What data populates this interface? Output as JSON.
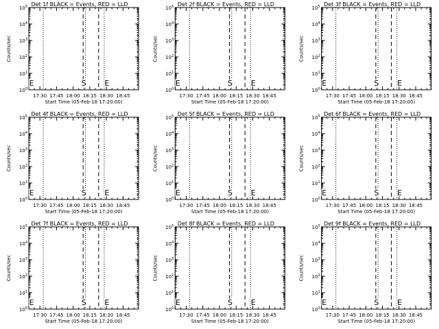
{
  "chart_data": [
    {
      "type": "line",
      "title": "Det 1f BLACK = Events, RED = LLD",
      "xlabel": "Start Time (05-Feb-18 17:20:00)",
      "ylabel": "Counts/sec",
      "xticks": [
        "17:30",
        "17:45",
        "18:00",
        "18:15",
        "18:30",
        "18:45"
      ],
      "yticks": [
        {
          "base": "10",
          "exp": "0"
        },
        {
          "base": "10",
          "exp": "1"
        },
        {
          "base": "10",
          "exp": "2"
        },
        {
          "base": "10",
          "exp": "3"
        },
        {
          "base": "10",
          "exp": "4"
        },
        {
          "base": "10",
          "exp": "5"
        }
      ],
      "ylim": [
        1,
        100000
      ],
      "yscale": "log",
      "xlim": [
        "17:20",
        "18:59"
      ],
      "dotted_lines": [
        "17:20",
        "17:33",
        "18:11",
        "18:28",
        "18:58"
      ],
      "dashed_lines": [
        {
          "time": "18:09",
          "label": "S"
        },
        {
          "time": "18:23",
          "label": ""
        }
      ],
      "markers": [
        {
          "time": "17:20",
          "label": "E"
        },
        {
          "time": "18:28",
          "label": "E"
        }
      ],
      "series": []
    },
    {
      "type": "line",
      "title": "Det 2f BLACK = Events, RED = LLD",
      "xlabel": "Start Time (05-Feb-18 17:20:00)",
      "ylabel": "Counts/sec",
      "xticks": [
        "17:30",
        "17:45",
        "18:00",
        "18:15",
        "18:30",
        "18:45"
      ],
      "yticks": [
        {
          "base": "10",
          "exp": "0"
        },
        {
          "base": "10",
          "exp": "1"
        },
        {
          "base": "10",
          "exp": "2"
        },
        {
          "base": "10",
          "exp": "3"
        },
        {
          "base": "10",
          "exp": "4"
        },
        {
          "base": "10",
          "exp": "5"
        }
      ],
      "ylim": [
        1,
        100000
      ],
      "yscale": "log",
      "xlim": [
        "17:20",
        "18:59"
      ],
      "dotted_lines": [
        "17:20",
        "17:33",
        "18:11",
        "18:28",
        "18:58"
      ],
      "dashed_lines": [
        {
          "time": "18:09",
          "label": "S"
        },
        {
          "time": "18:23",
          "label": ""
        }
      ],
      "markers": [
        {
          "time": "17:20",
          "label": "E"
        },
        {
          "time": "18:28",
          "label": "E"
        }
      ],
      "series": []
    },
    {
      "type": "line",
      "title": "Det 3f BLACK = Events, RED = LLD",
      "xlabel": "Start Time (05-Feb-18 17:20:00)",
      "ylabel": "Counts/sec",
      "xticks": [
        "17:30",
        "17:45",
        "18:00",
        "18:15",
        "18:30",
        "18:45"
      ],
      "yticks": [
        {
          "base": "10",
          "exp": "0"
        },
        {
          "base": "10",
          "exp": "1"
        },
        {
          "base": "10",
          "exp": "2"
        },
        {
          "base": "10",
          "exp": "3"
        },
        {
          "base": "10",
          "exp": "4"
        },
        {
          "base": "10",
          "exp": "5"
        }
      ],
      "ylim": [
        1,
        100000
      ],
      "yscale": "log",
      "xlim": [
        "17:20",
        "18:59"
      ],
      "dotted_lines": [
        "17:20",
        "17:33",
        "18:11",
        "18:28",
        "18:58"
      ],
      "dashed_lines": [
        {
          "time": "18:09",
          "label": "S"
        },
        {
          "time": "18:23",
          "label": ""
        }
      ],
      "markers": [
        {
          "time": "17:20",
          "label": "E"
        },
        {
          "time": "18:28",
          "label": "E"
        }
      ],
      "series": []
    },
    {
      "type": "line",
      "title": "Det 4f BLACK = Events, RED = LLD",
      "xlabel": "Start Time (05-Feb-18 17:20:00)",
      "ylabel": "Counts/sec",
      "xticks": [
        "17:30",
        "17:45",
        "18:00",
        "18:15",
        "18:30",
        "18:45"
      ],
      "yticks": [
        {
          "base": "10",
          "exp": "0"
        },
        {
          "base": "10",
          "exp": "1"
        },
        {
          "base": "10",
          "exp": "2"
        },
        {
          "base": "10",
          "exp": "3"
        },
        {
          "base": "10",
          "exp": "4"
        },
        {
          "base": "10",
          "exp": "5"
        }
      ],
      "ylim": [
        1,
        100000
      ],
      "yscale": "log",
      "xlim": [
        "17:20",
        "18:59"
      ],
      "dotted_lines": [
        "17:20",
        "17:33",
        "18:11",
        "18:28",
        "18:58"
      ],
      "dashed_lines": [
        {
          "time": "18:09",
          "label": "S"
        },
        {
          "time": "18:23",
          "label": ""
        }
      ],
      "markers": [
        {
          "time": "17:20",
          "label": "E"
        },
        {
          "time": "18:28",
          "label": "E"
        }
      ],
      "series": []
    },
    {
      "type": "line",
      "title": "Det 5f BLACK = Events, RED = LLD",
      "xlabel": "Start Time (05-Feb-18 17:20:00)",
      "ylabel": "Counts/sec",
      "xticks": [
        "17:30",
        "17:45",
        "18:00",
        "18:15",
        "18:30",
        "18:45"
      ],
      "yticks": [
        {
          "base": "10",
          "exp": "0"
        },
        {
          "base": "10",
          "exp": "1"
        },
        {
          "base": "10",
          "exp": "2"
        },
        {
          "base": "10",
          "exp": "3"
        },
        {
          "base": "10",
          "exp": "4"
        },
        {
          "base": "10",
          "exp": "5"
        }
      ],
      "ylim": [
        1,
        100000
      ],
      "yscale": "log",
      "xlim": [
        "17:20",
        "18:59"
      ],
      "dotted_lines": [
        "17:20",
        "17:33",
        "18:11",
        "18:28",
        "18:58"
      ],
      "dashed_lines": [
        {
          "time": "18:09",
          "label": "S"
        },
        {
          "time": "18:23",
          "label": ""
        }
      ],
      "markers": [
        {
          "time": "17:20",
          "label": "E"
        },
        {
          "time": "18:28",
          "label": "E"
        }
      ],
      "series": []
    },
    {
      "type": "line",
      "title": "Det 6f BLACK = Events, RED = LLD",
      "xlabel": "Start Time (05-Feb-18 17:20:00)",
      "ylabel": "Counts/sec",
      "xticks": [
        "17:30",
        "17:45",
        "18:00",
        "18:15",
        "18:30",
        "18:45"
      ],
      "yticks": [
        {
          "base": "10",
          "exp": "0"
        },
        {
          "base": "10",
          "exp": "1"
        },
        {
          "base": "10",
          "exp": "2"
        },
        {
          "base": "10",
          "exp": "3"
        },
        {
          "base": "10",
          "exp": "4"
        },
        {
          "base": "10",
          "exp": "5"
        }
      ],
      "ylim": [
        1,
        100000
      ],
      "yscale": "log",
      "xlim": [
        "17:20",
        "18:59"
      ],
      "dotted_lines": [
        "17:20",
        "17:33",
        "18:11",
        "18:28",
        "18:58"
      ],
      "dashed_lines": [
        {
          "time": "18:09",
          "label": "S"
        },
        {
          "time": "18:23",
          "label": ""
        }
      ],
      "markers": [
        {
          "time": "17:20",
          "label": "E"
        },
        {
          "time": "18:28",
          "label": "E"
        }
      ],
      "series": []
    },
    {
      "type": "line",
      "title": "Det 7f BLACK = Events, RED = LLD",
      "xlabel": "Start Time (05-Feb-18 17:20:00)",
      "ylabel": "Counts/sec",
      "xticks": [
        "17:30",
        "17:45",
        "18:00",
        "18:15",
        "18:30",
        "18:45"
      ],
      "yticks": [
        {
          "base": "10",
          "exp": "0"
        },
        {
          "base": "10",
          "exp": "1"
        },
        {
          "base": "10",
          "exp": "2"
        },
        {
          "base": "10",
          "exp": "3"
        },
        {
          "base": "10",
          "exp": "4"
        },
        {
          "base": "10",
          "exp": "5"
        }
      ],
      "ylim": [
        1,
        100000
      ],
      "yscale": "log",
      "xlim": [
        "17:20",
        "18:59"
      ],
      "dotted_lines": [
        "17:20",
        "17:33",
        "18:11",
        "18:28",
        "18:58"
      ],
      "dashed_lines": [
        {
          "time": "18:09",
          "label": "S"
        },
        {
          "time": "18:23",
          "label": ""
        }
      ],
      "markers": [
        {
          "time": "17:20",
          "label": "E"
        },
        {
          "time": "18:28",
          "label": "E"
        }
      ],
      "series": []
    },
    {
      "type": "line",
      "title": "Det 8f BLACK = Events, RED = LLD",
      "xlabel": "Start Time (05-Feb-18 17:20:00)",
      "ylabel": "Counts/sec",
      "xticks": [
        "17:30",
        "17:45",
        "18:00",
        "18:15",
        "18:30",
        "18:45"
      ],
      "yticks": [
        {
          "base": "10",
          "exp": "0"
        },
        {
          "base": "10",
          "exp": "1"
        },
        {
          "base": "10",
          "exp": "2"
        },
        {
          "base": "10",
          "exp": "3"
        },
        {
          "base": "10",
          "exp": "4"
        },
        {
          "base": "10",
          "exp": "5"
        }
      ],
      "ylim": [
        1,
        100000
      ],
      "yscale": "log",
      "xlim": [
        "17:20",
        "18:59"
      ],
      "dotted_lines": [
        "17:20",
        "17:33",
        "18:11",
        "18:28",
        "18:58"
      ],
      "dashed_lines": [
        {
          "time": "18:09",
          "label": "S"
        },
        {
          "time": "18:23",
          "label": ""
        }
      ],
      "markers": [
        {
          "time": "17:20",
          "label": "E"
        },
        {
          "time": "18:28",
          "label": "E"
        }
      ],
      "series": []
    },
    {
      "type": "line",
      "title": "Det 9f BLACK = Events, RED = LLD",
      "xlabel": "Start Time (05-Feb-18 17:20:00)",
      "ylabel": "Counts/sec",
      "xticks": [
        "17:30",
        "17:45",
        "18:00",
        "18:15",
        "18:30",
        "18:45"
      ],
      "yticks": [
        {
          "base": "10",
          "exp": "0"
        },
        {
          "base": "10",
          "exp": "1"
        },
        {
          "base": "10",
          "exp": "2"
        },
        {
          "base": "10",
          "exp": "3"
        },
        {
          "base": "10",
          "exp": "4"
        },
        {
          "base": "10",
          "exp": "5"
        }
      ],
      "ylim": [
        1,
        100000
      ],
      "yscale": "log",
      "xlim": [
        "17:20",
        "18:59"
      ],
      "dotted_lines": [
        "17:20",
        "17:33",
        "18:11",
        "18:28",
        "18:58"
      ],
      "dashed_lines": [
        {
          "time": "18:09",
          "label": "S"
        },
        {
          "time": "18:23",
          "label": ""
        }
      ],
      "markers": [
        {
          "time": "17:20",
          "label": "E"
        },
        {
          "time": "18:28",
          "label": "E"
        }
      ],
      "series": []
    }
  ]
}
